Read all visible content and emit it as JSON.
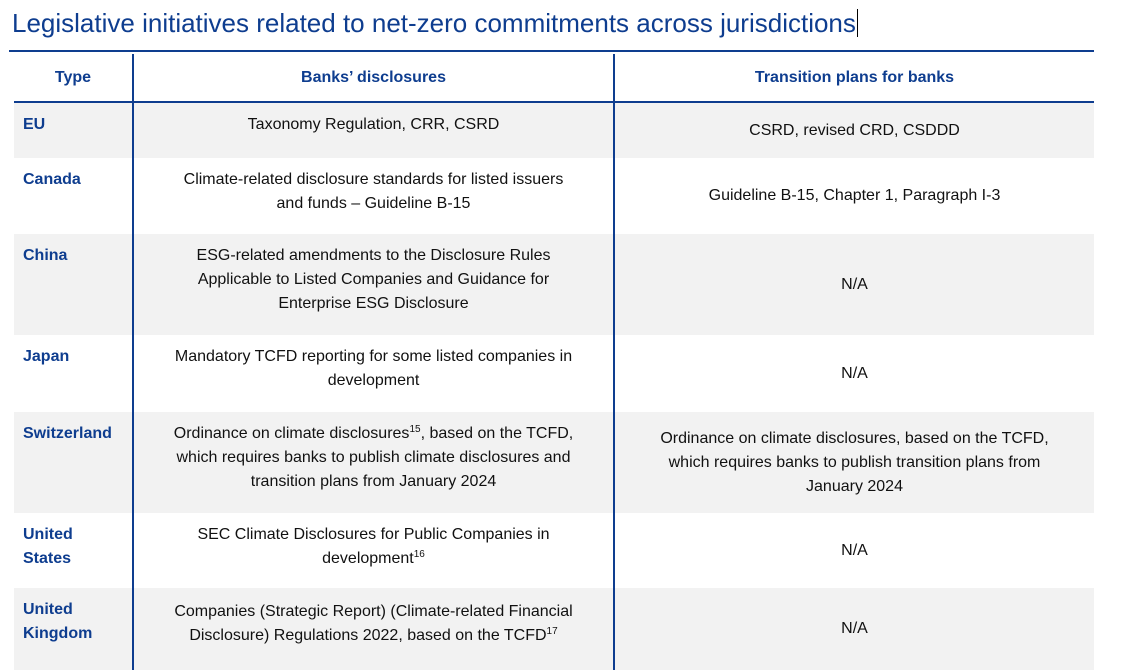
{
  "title": "Legislative initiatives related to net-zero commitments across jurisdictions",
  "columns": {
    "type": "Type",
    "banks": "Banks’ disclosures",
    "plans": "Transition plans for banks"
  },
  "rows": [
    {
      "type_lines": [
        "EU"
      ],
      "banks_lines": [
        "Taxonomy Regulation, CRR, CSRD"
      ],
      "plans_lines": [
        "CSRD, revised CRD, CSDDD"
      ]
    },
    {
      "type_lines": [
        "Canada"
      ],
      "banks_lines": [
        "Climate-related disclosure standards for listed issuers",
        "and funds – Guideline B-15"
      ],
      "plans_lines": [
        "Guideline B-15, Chapter 1, Paragraph I-3"
      ]
    },
    {
      "type_lines": [
        "China"
      ],
      "banks_lines": [
        "ESG-related amendments to the Disclosure Rules",
        "Applicable to Listed Companies and Guidance for",
        "Enterprise ESG Disclosure"
      ],
      "plans_lines": [
        "N/A"
      ]
    },
    {
      "type_lines": [
        "Japan"
      ],
      "banks_lines": [
        "Mandatory TCFD reporting for some listed companies in",
        "development"
      ],
      "plans_lines": [
        "N/A"
      ]
    },
    {
      "type_lines": [
        "Switzerland"
      ],
      "banks_line1_pre": "Ordinance on climate disclosures",
      "banks_line1_sup": "15",
      "banks_line1_post": ", based on the TCFD,",
      "banks_lines_rest": [
        "which requires banks to publish climate disclosures and",
        "transition plans from January 2024"
      ],
      "plans_lines": [
        "Ordinance on climate disclosures, based on the TCFD,",
        "which requires banks to publish transition plans from",
        "January 2024"
      ]
    },
    {
      "type_lines": [
        "United",
        "States"
      ],
      "banks_line1": "SEC Climate Disclosures for Public Companies in",
      "banks_line2_pre": "development",
      "banks_line2_sup": "16",
      "plans_lines": [
        "N/A"
      ]
    },
    {
      "type_lines": [
        "United",
        "Kingdom"
      ],
      "banks_line1": "Companies (Strategic Report) (Climate-related Financial",
      "banks_line2_pre": "Disclosure) Regulations 2022, based on the TCFD",
      "banks_line2_sup": "17",
      "plans_lines": [
        "N/A"
      ]
    }
  ]
}
